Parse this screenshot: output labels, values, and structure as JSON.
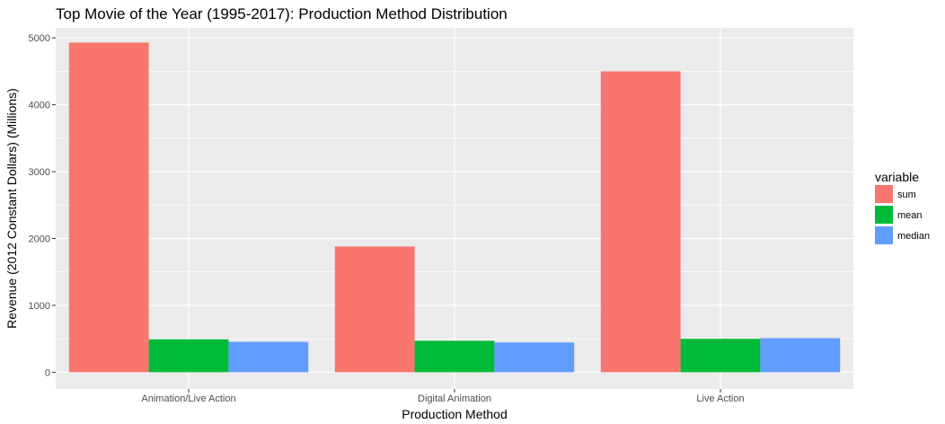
{
  "chart_data": {
    "type": "bar",
    "title": "Top Movie of the Year (1995-2017): Production Method Distribution",
    "xlabel": "Production Method",
    "ylabel": "Revenue (2012 Constant Dollars) (Millions)",
    "categories": [
      "Animation/Live Action",
      "Digital Animation",
      "Live Action"
    ],
    "series": [
      {
        "name": "sum",
        "values": [
          4930,
          1880,
          4500
        ],
        "color": "#F8766D"
      },
      {
        "name": "mean",
        "values": [
          493,
          470,
          500
        ],
        "color": "#00BA38"
      },
      {
        "name": "median",
        "values": [
          455,
          445,
          510
        ],
        "color": "#619CFF"
      }
    ],
    "ylim": [
      -250,
      5150
    ],
    "yticks": [
      0,
      1000,
      2000,
      3000,
      4000,
      5000
    ],
    "grid": true,
    "legend": {
      "title": "variable",
      "position": "right"
    },
    "panel_background": "#EBEBEB",
    "gridline_color": "#FFFFFF"
  }
}
